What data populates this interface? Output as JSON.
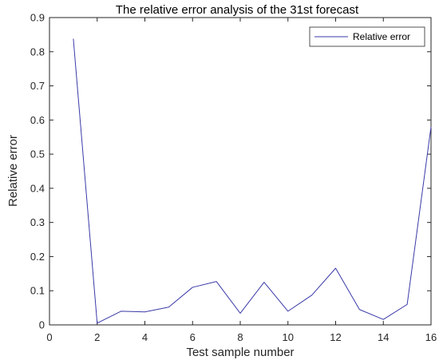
{
  "chart_data": {
    "type": "line",
    "title": "The relative error analysis of the 31st forecast",
    "xlabel": "Test sample number",
    "ylabel": "Relative error",
    "xlim": [
      0,
      16
    ],
    "ylim": [
      0,
      0.9
    ],
    "xticks": [
      0,
      2,
      4,
      6,
      8,
      10,
      12,
      14,
      16
    ],
    "xtick_labels": [
      "0",
      "2",
      "4",
      "6",
      "8",
      "10",
      "12",
      "14",
      "16"
    ],
    "yticks": [
      0,
      0.1,
      0.2,
      0.3,
      0.4,
      0.5,
      0.6,
      0.7,
      0.8,
      0.9
    ],
    "ytick_labels": [
      "0",
      "0.1",
      "0.2",
      "0.3",
      "0.4",
      "0.5",
      "0.6",
      "0.7",
      "0.8",
      "0.9"
    ],
    "grid": false,
    "legend_position": "top-right",
    "series": [
      {
        "name": "Relative error",
        "color": "#3a3aa8",
        "x": [
          1,
          2,
          3,
          4,
          5,
          6,
          7,
          8,
          9,
          10,
          11,
          12,
          13,
          14,
          15,
          16
        ],
        "y": [
          0.838,
          0.005,
          0.04,
          0.038,
          0.052,
          0.11,
          0.127,
          0.034,
          0.125,
          0.04,
          0.087,
          0.166,
          0.045,
          0.016,
          0.06,
          0.58
        ]
      }
    ]
  }
}
